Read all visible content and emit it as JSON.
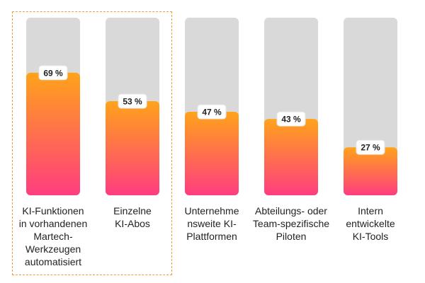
{
  "chart_data": {
    "type": "bar",
    "categories": [
      "KI-Funktionen\nin vorhandenen\nMartech-\nWerkzeugen\nautomatisiert",
      "Einzelne\nKI-Abos",
      "Unternehme\nnsweite KI-\nPlattformen",
      "Abteilungs- oder\nTeam-spezifische\nPiloten",
      "Intern\nentwickelte\nKI-Tools"
    ],
    "values": [
      69,
      53,
      47,
      43,
      27
    ],
    "value_labels": [
      "69 %",
      "53 %",
      "47 %",
      "43 %",
      "27 %"
    ],
    "ylim": [
      0,
      100
    ],
    "highlighted_index": 0,
    "colors": {
      "track": "#d9d9d9",
      "bar_top": "#ffa31a",
      "bar_bottom": "#ff3d7f",
      "highlight": "#f0a030",
      "text": "#222222"
    }
  }
}
